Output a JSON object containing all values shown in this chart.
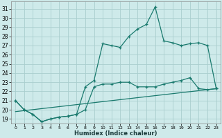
{
  "xlabel": "Humidex (Indice chaleur)",
  "background_color": "#ceeaea",
  "grid_color": "#aacece",
  "line_color": "#1a7a6e",
  "xlim": [
    -0.5,
    23.5
  ],
  "ylim": [
    18.5,
    31.8
  ],
  "yticks": [
    19,
    20,
    21,
    22,
    23,
    24,
    25,
    26,
    27,
    28,
    29,
    30,
    31
  ],
  "xticks": [
    0,
    1,
    2,
    3,
    4,
    5,
    6,
    7,
    8,
    9,
    10,
    11,
    12,
    13,
    14,
    15,
    16,
    17,
    18,
    19,
    20,
    21,
    22,
    23
  ],
  "line1_x": [
    0,
    1,
    2,
    3,
    4,
    5,
    6,
    7,
    8,
    9,
    10,
    11,
    12,
    13,
    14,
    15,
    16,
    17,
    18,
    19,
    20,
    21,
    22,
    23
  ],
  "line1_y": [
    21.0,
    20.0,
    19.5,
    18.7,
    19.0,
    19.2,
    19.3,
    19.5,
    20.0,
    22.5,
    22.8,
    22.8,
    23.0,
    23.0,
    22.5,
    22.5,
    22.5,
    22.8,
    23.0,
    23.2,
    23.5,
    22.3,
    22.2,
    22.3
  ],
  "line2_x": [
    0,
    1,
    2,
    3,
    4,
    5,
    6,
    7,
    8,
    9,
    10,
    11,
    12,
    13,
    14,
    15,
    16,
    17,
    18,
    19,
    20,
    21,
    22,
    23
  ],
  "line2_y": [
    21.0,
    20.0,
    19.5,
    18.7,
    19.0,
    19.2,
    19.3,
    19.5,
    22.5,
    23.2,
    27.2,
    27.0,
    26.8,
    28.0,
    28.8,
    29.3,
    31.2,
    27.5,
    27.3,
    27.0,
    27.2,
    27.3,
    27.0,
    22.3
  ],
  "line3_x": [
    0,
    23
  ],
  "line3_y": [
    19.8,
    22.3
  ]
}
